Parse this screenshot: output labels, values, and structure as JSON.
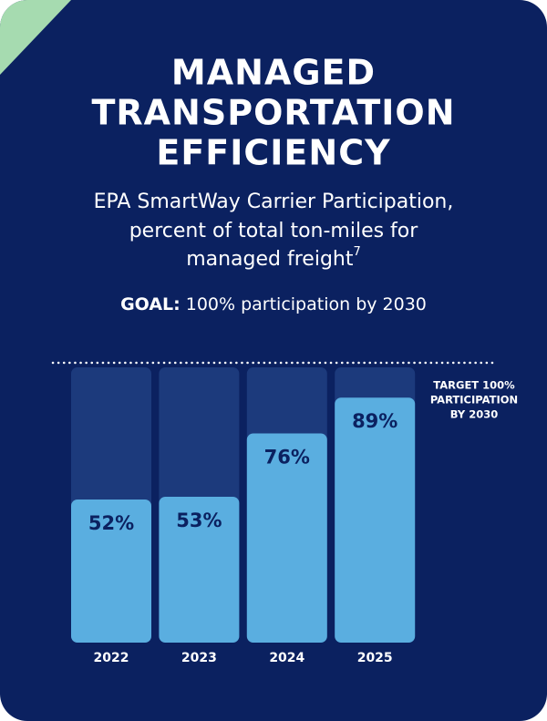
{
  "chart_data": {
    "type": "bar",
    "title": [
      "MANAGED",
      "TRANSPORTATION",
      "EFFICIENCY"
    ],
    "subtitle": [
      "EPA SmartWay Carrier Participation,",
      "percent of total ton-miles for",
      "managed freight"
    ],
    "subtitle_note": "7",
    "goal_label": "GOAL:",
    "goal": "100% participation by 2030",
    "categories": [
      "2022",
      "2023",
      "2024",
      "2025"
    ],
    "values": [
      52,
      53,
      76,
      89
    ],
    "value_labels": [
      "52%",
      "53%",
      "76%",
      "89%"
    ],
    "color": "#5aaee0",
    "track_color": "#1c3a7c",
    "ylim": [
      0,
      100
    ],
    "target": {
      "value": 100,
      "label": [
        "TARGET 100%",
        "PARTICIPATION",
        "BY 2030"
      ]
    }
  }
}
